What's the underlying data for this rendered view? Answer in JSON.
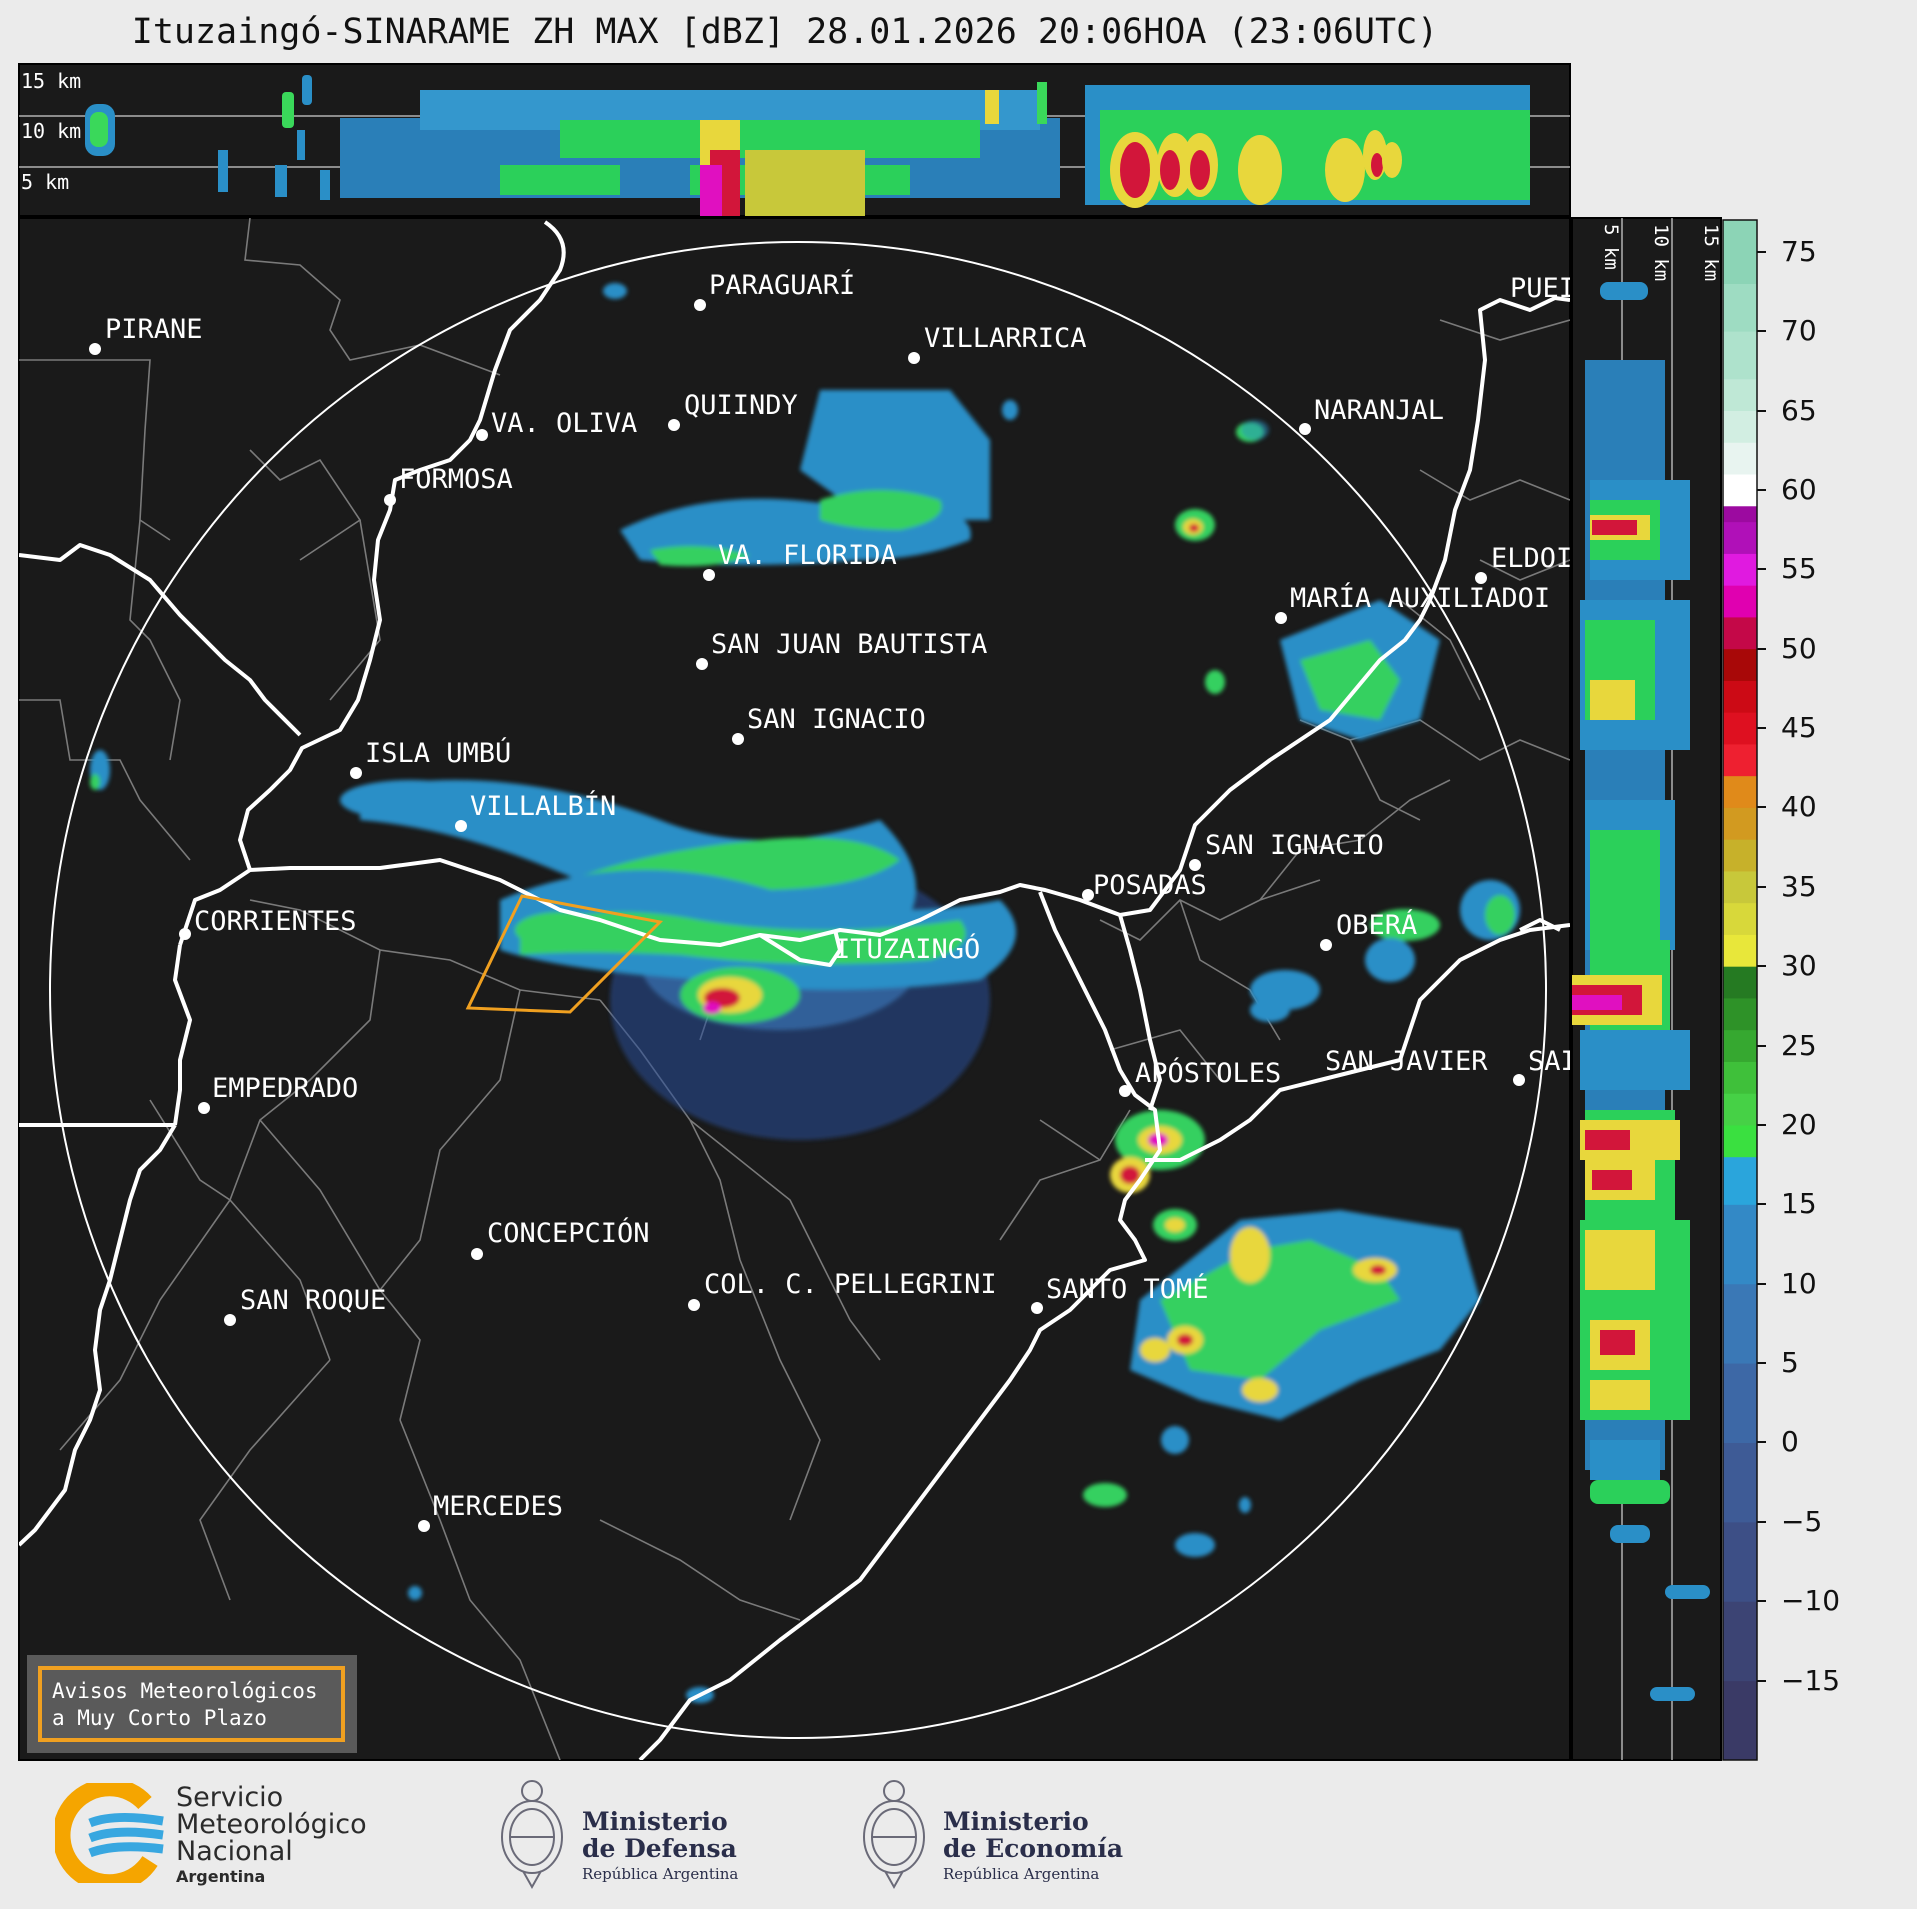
{
  "title": "Ituzaingó-SINARAME ZH MAX [dBZ] 28.01.2026 20:06HOA (23:06UTC)",
  "top_panel_labels": [
    "15 km",
    "10 km",
    "5 km"
  ],
  "side_panel_labels": [
    "5 km",
    "10 km",
    "15 km"
  ],
  "cities": [
    {
      "name": "PARAGUARÍ"
    },
    {
      "name": "VILLARRICA"
    },
    {
      "name": "PIRANE"
    },
    {
      "name": "QUIINDY"
    },
    {
      "name": "VA. OLIVA"
    },
    {
      "name": "NARANJAL"
    },
    {
      "name": "FORMOSA"
    },
    {
      "name": "VA. FLORIDA"
    },
    {
      "name": "ELDOI"
    },
    {
      "name": "MARÍA AUXILIADOI"
    },
    {
      "name": "SAN JUAN BAUTISTA"
    },
    {
      "name": "SAN IGNACIO"
    },
    {
      "name": "ISLA UMBÚ"
    },
    {
      "name": "VILLALBÍN"
    },
    {
      "name": "SAN IGNACIO"
    },
    {
      "name": "POSADAS"
    },
    {
      "name": "CORRIENTES"
    },
    {
      "name": "ITUZAINGÓ"
    },
    {
      "name": "OBERÁ"
    },
    {
      "name": "APÓSTOLES"
    },
    {
      "name": "SAN JAVIER"
    },
    {
      "name": "SAI"
    },
    {
      "name": "EMPEDRADO"
    },
    {
      "name": "CONCEPCIÓN"
    },
    {
      "name": "COL. C. PELLEGRINI"
    },
    {
      "name": "SANTO TOMÉ"
    },
    {
      "name": "SAN ROQUE"
    },
    {
      "name": "MERCEDES"
    },
    {
      "name": "PUEI"
    }
  ],
  "legend": {
    "line1": "Avisos Meteorológicos",
    "line2": "a Muy Corto Plazo",
    "color": "#f0a020"
  },
  "colorbar": {
    "ticks": [
      "75",
      "70",
      "65",
      "60",
      "55",
      "50",
      "45",
      "40",
      "35",
      "30",
      "25",
      "20",
      "15",
      "10",
      "5",
      "0",
      "−5",
      "−10",
      "−15"
    ],
    "range": [
      -20,
      77
    ]
  },
  "footer": {
    "smn": {
      "l1": "Servicio",
      "l2": "Meteorológico",
      "l3": "Nacional",
      "country": "Argentina"
    },
    "defensa": {
      "l1": "Ministerio",
      "l2": "de Defensa",
      "sub": "República Argentina"
    },
    "economia": {
      "l1": "Ministerio",
      "l2": "de Economía",
      "sub": "República Argentina"
    }
  }
}
